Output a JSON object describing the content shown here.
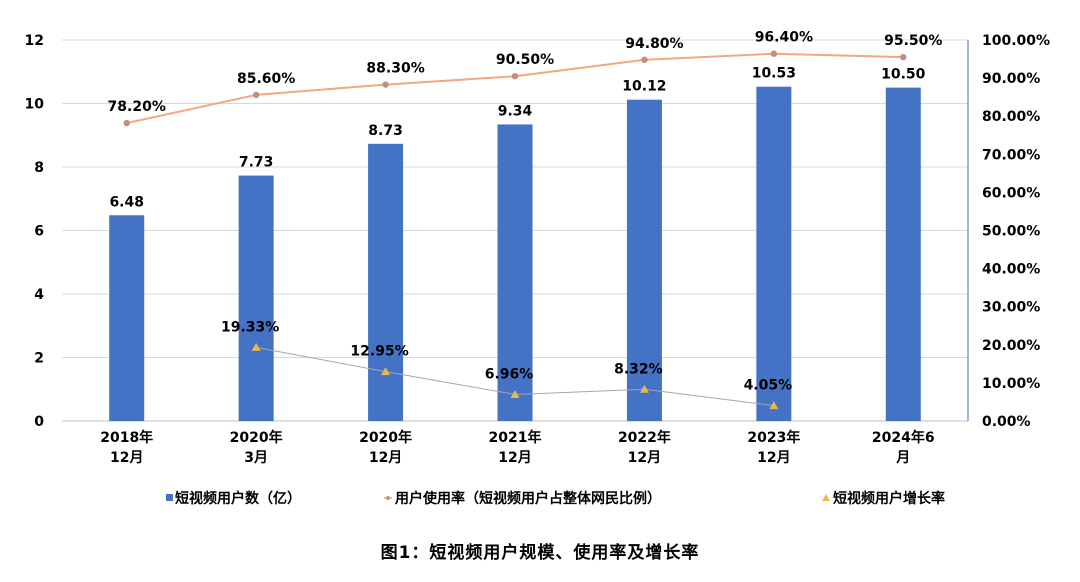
{
  "caption": "图1：短视频用户规模、使用率及增长率",
  "chart_data": {
    "type": "bar",
    "categories": [
      [
        "2018年",
        "12月"
      ],
      [
        "2020年",
        "3月"
      ],
      [
        "2020年",
        "12月"
      ],
      [
        "2021年",
        "12月"
      ],
      [
        "2022年",
        "12月"
      ],
      [
        "2023年",
        "12月"
      ],
      [
        "2024年6",
        "月"
      ]
    ],
    "left_axis": {
      "min": 0,
      "max": 12,
      "step": 2,
      "ticks": [
        "0",
        "2",
        "4",
        "6",
        "8",
        "10",
        "12"
      ]
    },
    "right_axis": {
      "min": 0,
      "max": 100,
      "step": 10,
      "ticks": [
        "0.00%",
        "10.00%",
        "20.00%",
        "30.00%",
        "40.00%",
        "50.00%",
        "60.00%",
        "70.00%",
        "80.00%",
        "90.00%",
        "100.00%"
      ]
    },
    "grid": true,
    "legend_position": "bottom",
    "series": [
      {
        "name": "短视频用户数（亿）",
        "kind": "bar",
        "axis": "left",
        "color": "#4472C4",
        "values": [
          6.48,
          7.73,
          8.73,
          9.34,
          10.12,
          10.53,
          10.5
        ],
        "labels": [
          "6.48",
          "7.73",
          "8.73",
          "9.34",
          "10.12",
          "10.53",
          "10.50"
        ]
      },
      {
        "name": "用户使用率（短视频用户占整体网民比例）",
        "kind": "line",
        "axis": "right",
        "color": "#F4A582",
        "marker_color": "#C0907E",
        "values": [
          78.2,
          85.6,
          88.3,
          90.5,
          94.8,
          96.4,
          95.5
        ],
        "labels": [
          "78.20%",
          "85.60%",
          "88.30%",
          "90.50%",
          "94.80%",
          "96.40%",
          "95.50%"
        ]
      },
      {
        "name": "短视频用户增长率",
        "kind": "line",
        "axis": "right",
        "color": "#A6A6A6",
        "marker_color": "#E8B84A",
        "values": [
          null,
          19.33,
          12.95,
          6.96,
          8.32,
          4.05,
          null
        ],
        "labels": [
          null,
          "19.33%",
          "12.95%",
          "6.96%",
          "8.32%",
          "4.05%",
          null
        ]
      }
    ]
  }
}
